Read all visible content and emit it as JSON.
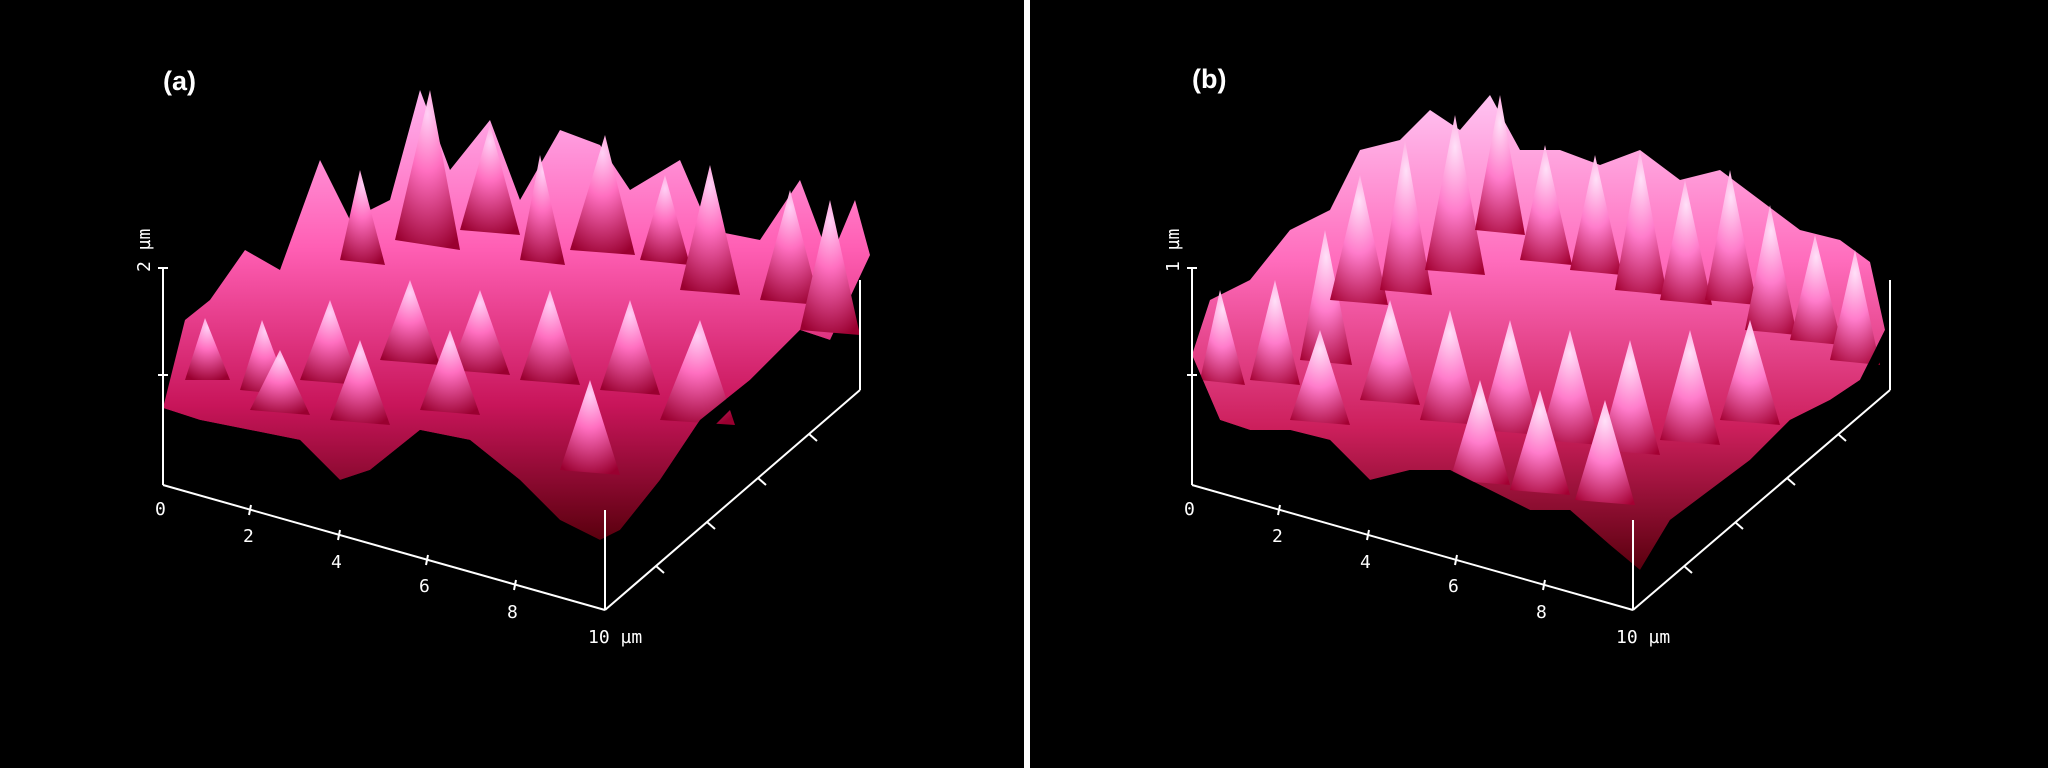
{
  "panels": [
    {
      "label": "(a)",
      "z_max_label": "2 µm",
      "x_tick_labels": [
        "0",
        "2",
        "4",
        "6",
        "8"
      ],
      "x_end_label": "10 µm"
    },
    {
      "label": "(b)",
      "z_max_label": "1 µm",
      "x_tick_labels": [
        "0",
        "2",
        "4",
        "6",
        "8"
      ],
      "x_end_label": "10 µm"
    }
  ],
  "colors": {
    "background": "#000000",
    "axis": "#ffffff",
    "surface_high": "#ff9fe6",
    "surface_mid": "#e0337f",
    "surface_low": "#6b0010",
    "divider": "#ffffff"
  }
}
